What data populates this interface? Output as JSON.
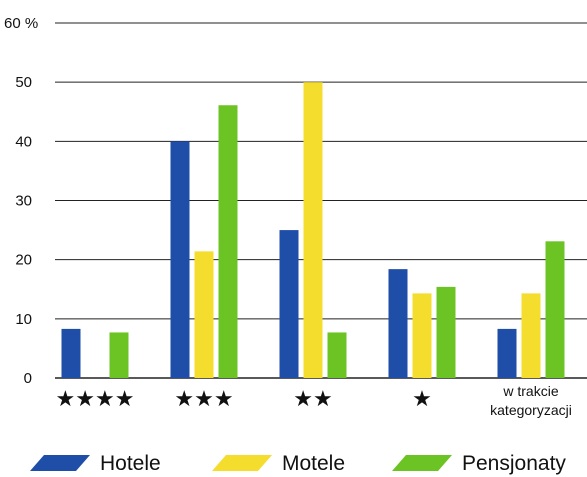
{
  "chart_data": {
    "type": "bar",
    "categories": [
      "★★★★",
      "★★★",
      "★★",
      "★",
      "w trakcie kategoryzacji"
    ],
    "category_lines": [
      [
        "★★★★"
      ],
      [
        "★★★"
      ],
      [
        "★★"
      ],
      [
        "★"
      ],
      [
        "w trakcie",
        "kategoryzacji"
      ]
    ],
    "series": [
      {
        "name": "Hotele",
        "color": "#1f4ea8",
        "values": [
          8.3,
          40,
          25,
          18.4,
          8.3
        ]
      },
      {
        "name": "Motele",
        "color": "#f5dd2e",
        "values": [
          0,
          21.4,
          50,
          14.3,
          14.3
        ]
      },
      {
        "name": "Pensjonaty",
        "color": "#6cc324",
        "values": [
          7.7,
          46.1,
          7.7,
          15.4,
          23.1
        ]
      }
    ],
    "y_ticks": [
      "0",
      "10",
      "20",
      "30",
      "40",
      "50",
      "60 %"
    ],
    "ylim": [
      0,
      60
    ],
    "grid": true,
    "legend_position": "bottom"
  }
}
